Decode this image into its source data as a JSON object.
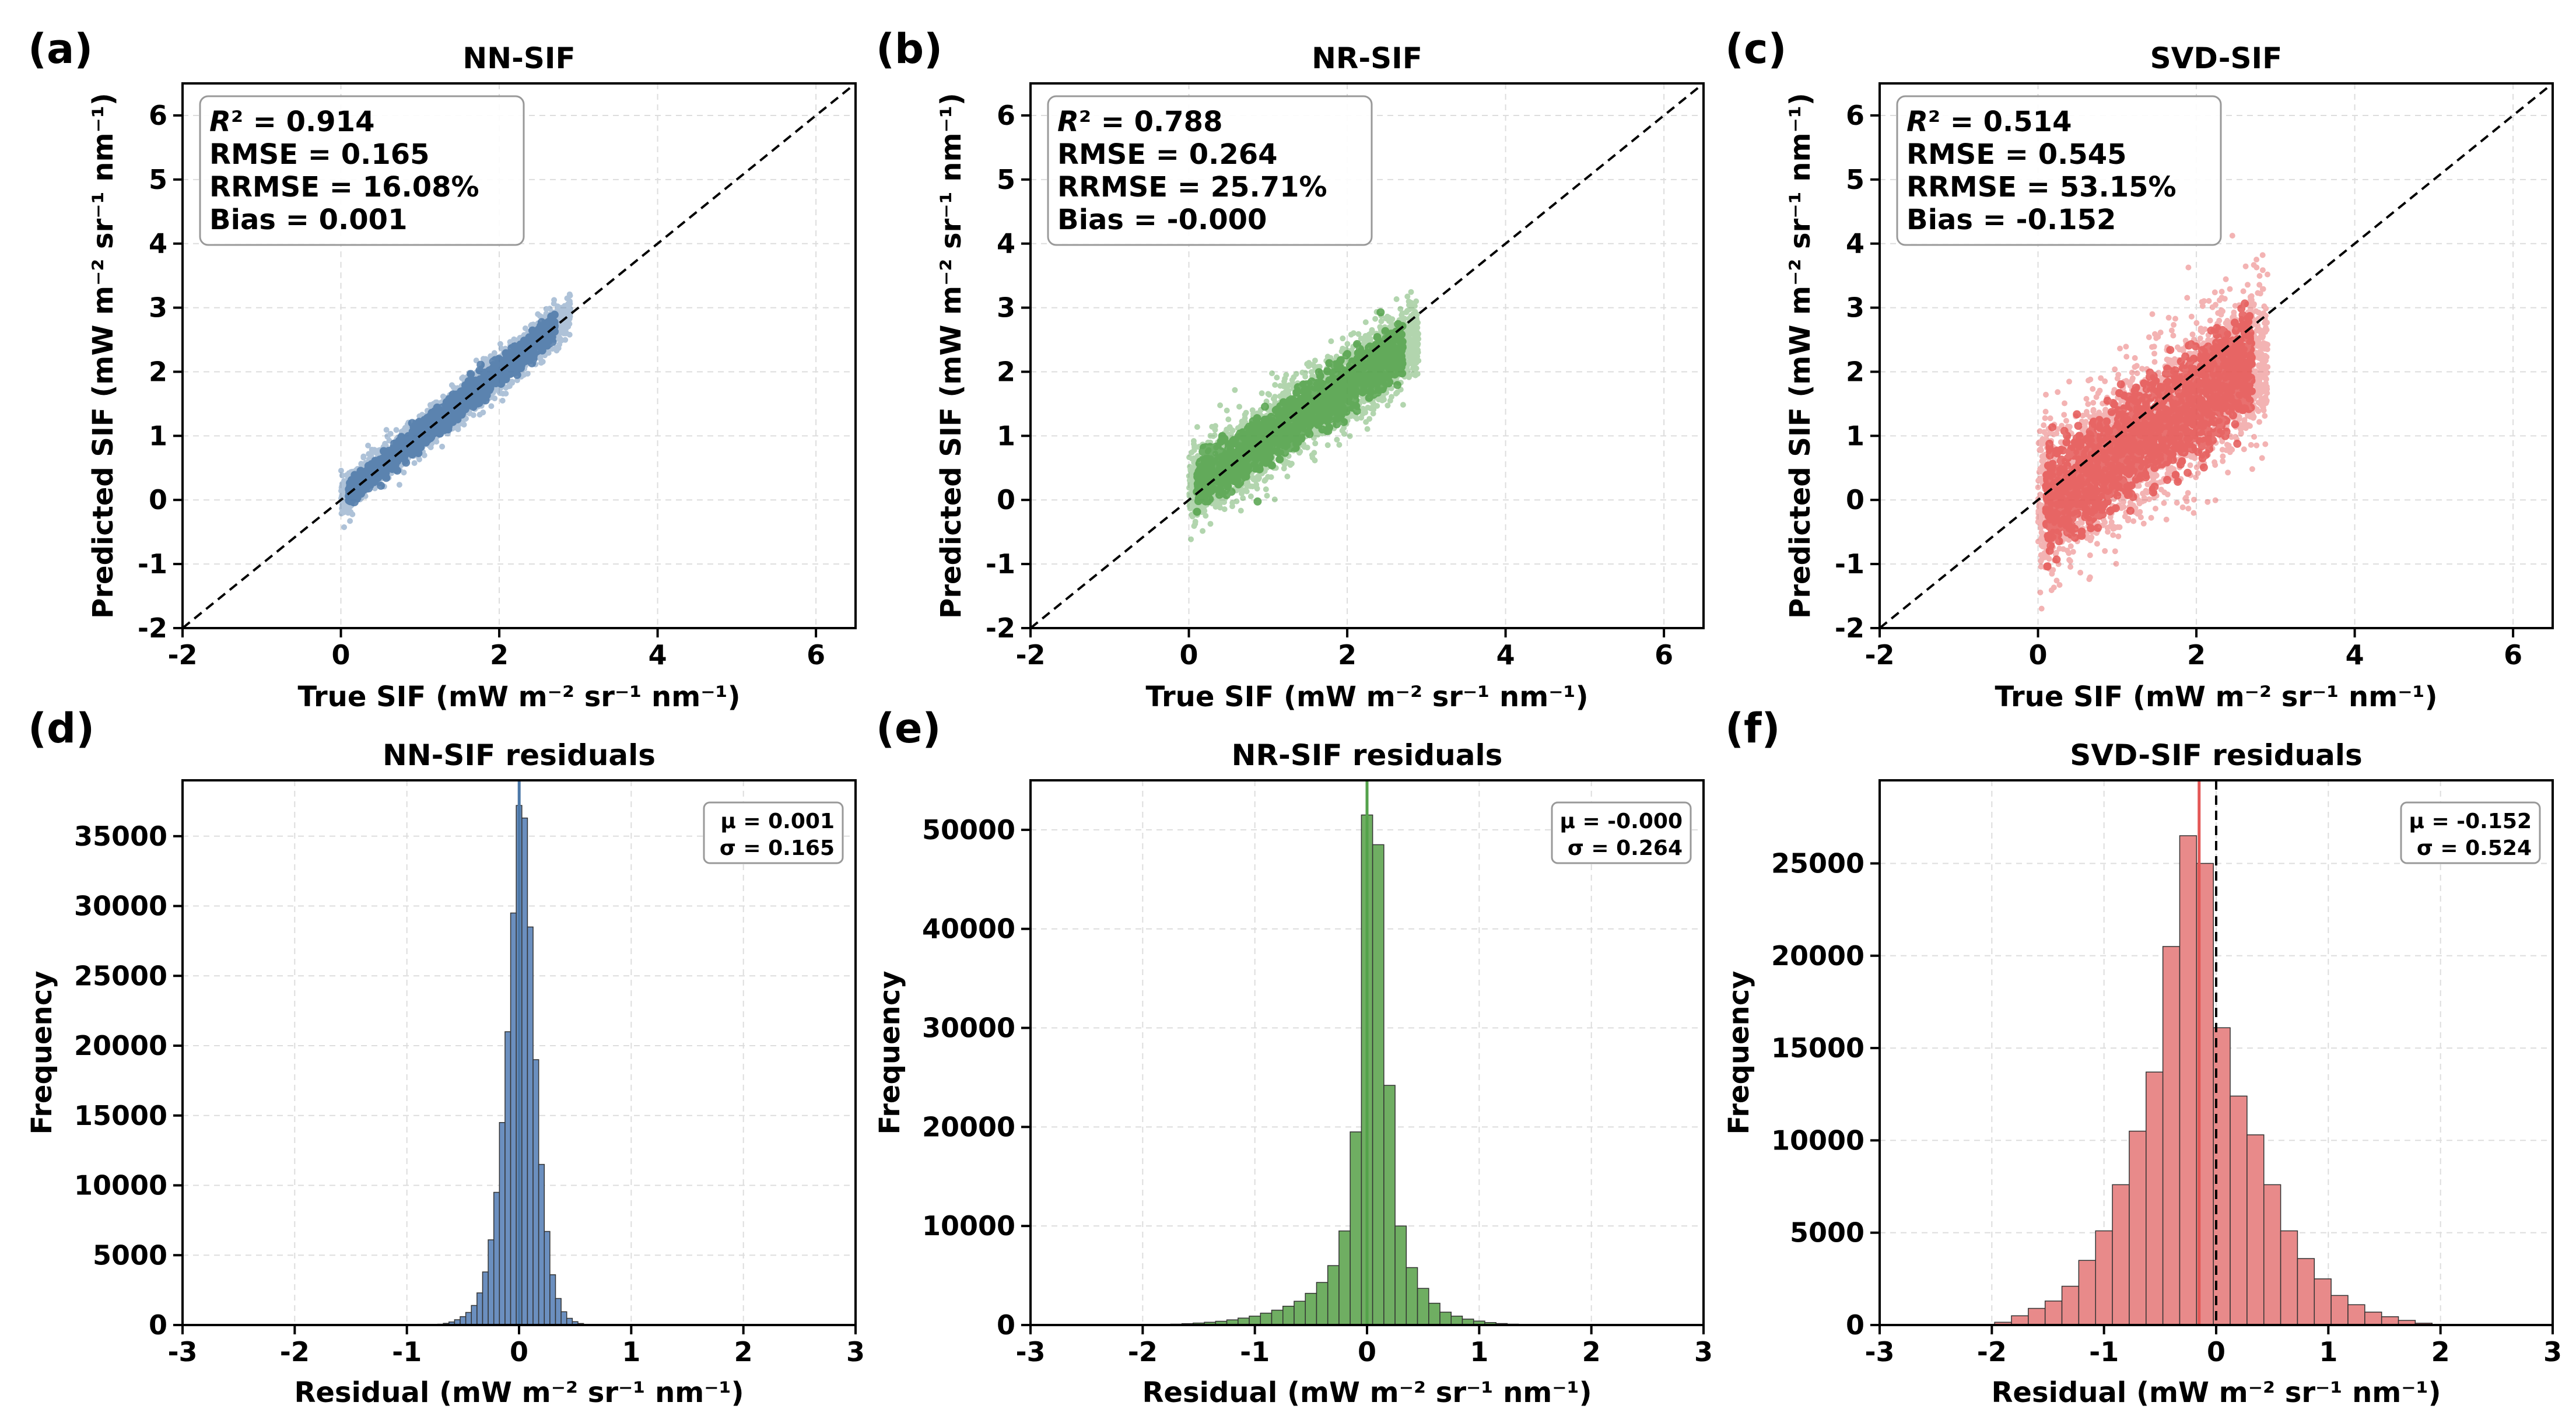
{
  "colors": {
    "nn": "#4c78a8",
    "nr": "#54a24b",
    "svd": "#e45756",
    "nn_hist": "#6b8fbf",
    "nr_hist": "#6fae62",
    "svd_hist": "#e88a8a"
  },
  "chart_data": [
    {
      "type": "scatter",
      "panel_label": "(a)",
      "title": "NN-SIF",
      "xlabel": "True SIF (mW m⁻² sr⁻¹ nm⁻¹)",
      "ylabel": "Predicted SIF (mW m⁻² sr⁻¹ nm⁻¹)",
      "xlim": [
        -2,
        6.5
      ],
      "ylim": [
        -2,
        6.5
      ],
      "xticks": [
        -2,
        0,
        2,
        4,
        6
      ],
      "yticks": [
        -2,
        -1,
        0,
        1,
        2,
        3,
        4,
        5,
        6
      ],
      "grid": true,
      "reference_line": "1:1 dashed",
      "stats": {
        "r2_label": "R",
        "r2_value": "² = 0.914",
        "rmse": "RMSE = 0.165",
        "rrmse": "RRMSE = 16.08%",
        "bias": "Bias = 0.001"
      },
      "points_description": {
        "x_range": [
          0,
          2.9
        ],
        "spread": 0.165,
        "bias": 0.001
      }
    },
    {
      "type": "scatter",
      "panel_label": "(b)",
      "title": "NR-SIF",
      "xlabel": "True SIF (mW m⁻² sr⁻¹ nm⁻¹)",
      "ylabel": "Predicted SIF (mW m⁻² sr⁻¹ nm⁻¹)",
      "xlim": [
        -2,
        6.5
      ],
      "ylim": [
        -2,
        6.5
      ],
      "xticks": [
        -2,
        0,
        2,
        4,
        6
      ],
      "yticks": [
        -2,
        -1,
        0,
        1,
        2,
        3,
        4,
        5,
        6
      ],
      "grid": true,
      "reference_line": "1:1 dashed",
      "stats": {
        "r2_label": "R",
        "r2_value": "² = 0.788",
        "rmse": "RMSE = 0.264",
        "rrmse": "RRMSE = 25.71%",
        "bias": "Bias = -0.000"
      },
      "points_description": {
        "x_range": [
          0,
          2.9
        ],
        "spread": 0.264,
        "bias": 0.0
      }
    },
    {
      "type": "scatter",
      "panel_label": "(c)",
      "title": "SVD-SIF",
      "xlabel": "True SIF (mW m⁻² sr⁻¹ nm⁻¹)",
      "ylabel": "Predicted SIF (mW m⁻² sr⁻¹ nm⁻¹)",
      "xlim": [
        -2,
        6.5
      ],
      "ylim": [
        -2,
        6.5
      ],
      "xticks": [
        -2,
        0,
        2,
        4,
        6
      ],
      "yticks": [
        -2,
        -1,
        0,
        1,
        2,
        3,
        4,
        5,
        6
      ],
      "grid": true,
      "reference_line": "1:1 dashed",
      "stats": {
        "r2_label": "R",
        "r2_value": "² = 0.514",
        "rmse": "RMSE = 0.545",
        "rrmse": "RRMSE = 53.15%",
        "bias": "Bias = -0.152"
      },
      "points_description": {
        "x_range": [
          0,
          2.9
        ],
        "spread": 0.545,
        "bias": -0.152
      }
    },
    {
      "type": "bar",
      "panel_label": "(d)",
      "title": "NN-SIF residuals",
      "xlabel": "Residual (mW m⁻² sr⁻¹ nm⁻¹)",
      "ylabel": "Frequency",
      "xlim": [
        -3,
        3
      ],
      "ylim": [
        0,
        39000
      ],
      "xticks": [
        -3,
        -2,
        -1,
        0,
        1,
        2,
        3
      ],
      "yticks": [
        0,
        5000,
        10000,
        15000,
        20000,
        25000,
        30000,
        35000
      ],
      "grid": true,
      "mean_line": 0.001,
      "zero_line": 0,
      "stats_text": [
        "μ = 0.001",
        "σ = 0.165"
      ],
      "bin_width": 0.05,
      "bins": [
        {
          "x": -0.75,
          "count": 30
        },
        {
          "x": -0.7,
          "count": 60
        },
        {
          "x": -0.65,
          "count": 120
        },
        {
          "x": -0.6,
          "count": 220
        },
        {
          "x": -0.55,
          "count": 380
        },
        {
          "x": -0.5,
          "count": 600
        },
        {
          "x": -0.45,
          "count": 900
        },
        {
          "x": -0.4,
          "count": 1400
        },
        {
          "x": -0.35,
          "count": 2300
        },
        {
          "x": -0.3,
          "count": 3800
        },
        {
          "x": -0.25,
          "count": 6100
        },
        {
          "x": -0.2,
          "count": 9500
        },
        {
          "x": -0.15,
          "count": 14500
        },
        {
          "x": -0.1,
          "count": 21000
        },
        {
          "x": -0.05,
          "count": 29500
        },
        {
          "x": 0.0,
          "count": 37200
        },
        {
          "x": 0.05,
          "count": 36300
        },
        {
          "x": 0.1,
          "count": 28500
        },
        {
          "x": 0.15,
          "count": 19000
        },
        {
          "x": 0.2,
          "count": 11500
        },
        {
          "x": 0.25,
          "count": 6700
        },
        {
          "x": 0.3,
          "count": 3600
        },
        {
          "x": 0.35,
          "count": 1900
        },
        {
          "x": 0.4,
          "count": 950
        },
        {
          "x": 0.45,
          "count": 480
        },
        {
          "x": 0.5,
          "count": 240
        },
        {
          "x": 0.55,
          "count": 110
        },
        {
          "x": 0.6,
          "count": 50
        }
      ]
    },
    {
      "type": "bar",
      "panel_label": "(e)",
      "title": "NR-SIF residuals",
      "xlabel": "Residual (mW m⁻² sr⁻¹ nm⁻¹)",
      "ylabel": "Frequency",
      "xlim": [
        -3,
        3
      ],
      "ylim": [
        0,
        55000
      ],
      "xticks": [
        -3,
        -2,
        -1,
        0,
        1,
        2,
        3
      ],
      "yticks": [
        0,
        10000,
        20000,
        30000,
        40000,
        50000
      ],
      "grid": true,
      "mean_line": 0.0,
      "zero_line": 0,
      "stats_text": [
        "μ = -0.000",
        "σ = 0.264"
      ],
      "bin_width": 0.1,
      "bins": [
        {
          "x": -1.8,
          "count": 60
        },
        {
          "x": -1.7,
          "count": 90
        },
        {
          "x": -1.6,
          "count": 140
        },
        {
          "x": -1.5,
          "count": 200
        },
        {
          "x": -1.4,
          "count": 280
        },
        {
          "x": -1.3,
          "count": 380
        },
        {
          "x": -1.2,
          "count": 520
        },
        {
          "x": -1.1,
          "count": 700
        },
        {
          "x": -1.0,
          "count": 900
        },
        {
          "x": -0.9,
          "count": 1200
        },
        {
          "x": -0.8,
          "count": 1500
        },
        {
          "x": -0.7,
          "count": 1900
        },
        {
          "x": -0.6,
          "count": 2400
        },
        {
          "x": -0.5,
          "count": 3200
        },
        {
          "x": -0.4,
          "count": 4300
        },
        {
          "x": -0.3,
          "count": 6000
        },
        {
          "x": -0.2,
          "count": 9500
        },
        {
          "x": -0.1,
          "count": 19500
        },
        {
          "x": 0.0,
          "count": 51500
        },
        {
          "x": 0.1,
          "count": 48500
        },
        {
          "x": 0.2,
          "count": 24200
        },
        {
          "x": 0.3,
          "count": 10000
        },
        {
          "x": 0.4,
          "count": 5800
        },
        {
          "x": 0.5,
          "count": 3700
        },
        {
          "x": 0.6,
          "count": 2200
        },
        {
          "x": 0.7,
          "count": 1300
        },
        {
          "x": 0.8,
          "count": 900
        },
        {
          "x": 0.9,
          "count": 600
        },
        {
          "x": 1.0,
          "count": 400
        },
        {
          "x": 1.1,
          "count": 250
        },
        {
          "x": 1.2,
          "count": 150
        },
        {
          "x": 1.3,
          "count": 90
        }
      ]
    },
    {
      "type": "bar",
      "panel_label": "(f)",
      "title": "SVD-SIF residuals",
      "xlabel": "Residual (mW m⁻² sr⁻¹ nm⁻¹)",
      "ylabel": "Frequency",
      "xlim": [
        -3,
        3
      ],
      "ylim": [
        0,
        29500
      ],
      "xticks": [
        -3,
        -2,
        -1,
        0,
        1,
        2,
        3
      ],
      "yticks": [
        0,
        5000,
        10000,
        15000,
        20000,
        25000
      ],
      "grid": true,
      "mean_line": -0.152,
      "zero_line": 0,
      "stats_text": [
        "μ = -0.152",
        "σ = 0.524"
      ],
      "bin_width": 0.15,
      "bins": [
        {
          "x": -1.9,
          "count": 150
        },
        {
          "x": -1.75,
          "count": 500
        },
        {
          "x": -1.6,
          "count": 900
        },
        {
          "x": -1.45,
          "count": 1300
        },
        {
          "x": -1.3,
          "count": 2100
        },
        {
          "x": -1.15,
          "count": 3500
        },
        {
          "x": -1.0,
          "count": 5100
        },
        {
          "x": -0.85,
          "count": 7600
        },
        {
          "x": -0.7,
          "count": 10500
        },
        {
          "x": -0.55,
          "count": 13700
        },
        {
          "x": -0.4,
          "count": 20500
        },
        {
          "x": -0.25,
          "count": 26500
        },
        {
          "x": -0.1,
          "count": 25000
        },
        {
          "x": 0.05,
          "count": 16100
        },
        {
          "x": 0.2,
          "count": 12400
        },
        {
          "x": 0.35,
          "count": 10300
        },
        {
          "x": 0.5,
          "count": 7600
        },
        {
          "x": 0.65,
          "count": 5100
        },
        {
          "x": 0.8,
          "count": 3600
        },
        {
          "x": 0.95,
          "count": 2500
        },
        {
          "x": 1.1,
          "count": 1600
        },
        {
          "x": 1.25,
          "count": 1100
        },
        {
          "x": 1.4,
          "count": 700
        },
        {
          "x": 1.55,
          "count": 450
        },
        {
          "x": 1.7,
          "count": 250
        },
        {
          "x": 1.85,
          "count": 100
        }
      ]
    }
  ]
}
